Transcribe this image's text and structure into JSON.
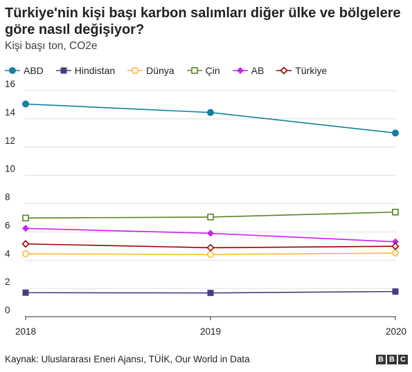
{
  "chart_data": {
    "type": "line",
    "title": "Türkiye'nin kişi başı karbon salımları diğer ülke ve bölgelere göre nasıl değişiyor?",
    "subtitle": "Kişi başı ton, CO2e",
    "x": [
      "2018",
      "2019",
      "2020"
    ],
    "ylim": [
      0,
      16
    ],
    "yticks": [
      "0",
      "2",
      "4",
      "6",
      "8",
      "10",
      "12",
      "14",
      "16"
    ],
    "grid": true,
    "legend_position": "top",
    "series": [
      {
        "name": "ABD",
        "values": [
          15.05,
          14.45,
          13.0
        ],
        "color": "#1380a1",
        "marker": "circle-filled"
      },
      {
        "name": "Hindistan",
        "values": [
          1.7,
          1.68,
          1.78
        ],
        "color": "#4b3a82",
        "marker": "square-filled"
      },
      {
        "name": "Dünya",
        "values": [
          4.45,
          4.4,
          4.5
        ],
        "color": "#fdb834",
        "marker": "circle-open"
      },
      {
        "name": "Çin",
        "values": [
          6.98,
          7.05,
          7.4
        ],
        "color": "#588421",
        "marker": "square-open"
      },
      {
        "name": "AB",
        "values": [
          6.25,
          5.9,
          5.3
        ],
        "color": "#cb1ef5",
        "marker": "diamond-filled"
      },
      {
        "name": "Türkiye",
        "values": [
          5.15,
          4.88,
          4.98
        ],
        "color": "#990000",
        "marker": "diamond-open"
      }
    ]
  },
  "footer": {
    "source": "Kaynak: Uluslararası Eneri Ajansı, TÜİK, Our World in Data",
    "logo_letters": [
      "B",
      "B",
      "C"
    ]
  }
}
